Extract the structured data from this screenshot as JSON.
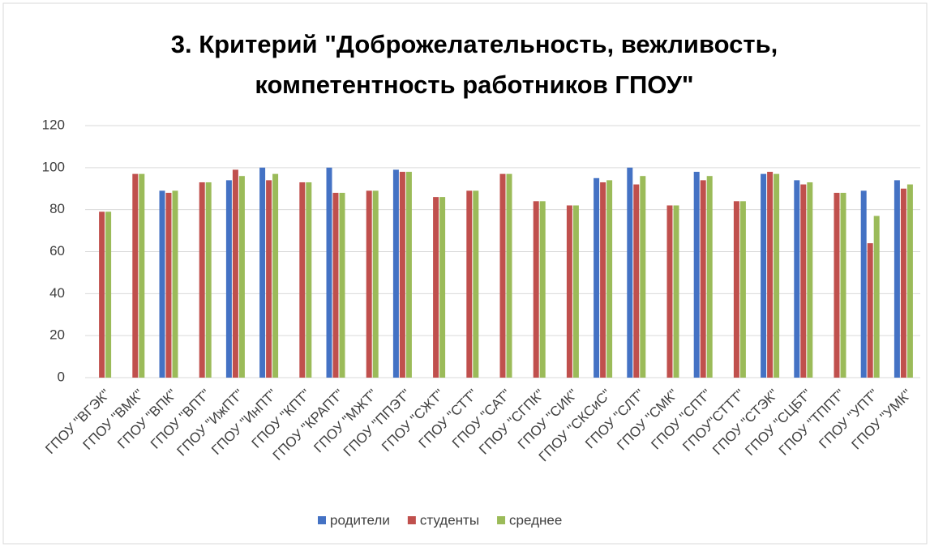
{
  "chart_data": {
    "type": "bar",
    "title": "3. Критерий \"Доброжелательность, вежливость, компетентность работников ГПОУ\"",
    "categories": [
      "ГПОУ \"ВГЭК\"",
      "ГПОУ \"ВМК\"",
      "ГПОУ \"ВПК\"",
      "ГПОУ \"ВПТ\"",
      "ГПОУ \"ИжПТ\"",
      "ГПОУ \"ИнПТ\"",
      "ГПОУ \"КПТ\"",
      "ГПОУ \"КРАПТ\"",
      "ГПОУ \"МЖТ\"",
      "ГПОУ \"ППЭТ\"",
      "ГПОУ \"СЖТ\"",
      "ГПОУ \"СТТ\"",
      "ГПОУ \"САТ\"",
      "ГПОУ \"СГПК\"",
      "ГПОУ \"СИК\"",
      "ГПОУ \"СКСиС\"",
      "ГПОУ \"СЛТ\"",
      "ГПОУ \"СМК\"",
      "ГПОУ \"СПТ\"",
      "ГПОУ\"СТТТ\"",
      "ГПОУ \"СТЭК\"",
      "ГПОУ \"СЦБТ\"",
      "ГПОУ \"ТППТ\"",
      "ГПОУ \"УПТ\"",
      "ГПОУ \"УМК\""
    ],
    "series": [
      {
        "name": "родители",
        "color": "#4472c4",
        "values": [
          null,
          null,
          89,
          null,
          94,
          100,
          null,
          100,
          null,
          99,
          null,
          null,
          null,
          null,
          null,
          95,
          100,
          null,
          98,
          null,
          97,
          94,
          null,
          89,
          94
        ]
      },
      {
        "name": "студенты",
        "color": "#c0504d",
        "values": [
          79,
          97,
          88,
          93,
          99,
          94,
          93,
          88,
          89,
          98,
          86,
          89,
          97,
          84,
          82,
          93,
          92,
          82,
          94,
          84,
          98,
          92,
          88,
          64,
          90
        ]
      },
      {
        "name": "среднее",
        "color": "#9bbb59",
        "values": [
          79,
          97,
          89,
          93,
          96,
          97,
          93,
          88,
          89,
          98,
          86,
          89,
          97,
          84,
          82,
          94,
          96,
          82,
          96,
          84,
          97,
          93,
          88,
          77,
          92
        ]
      }
    ],
    "ylim": [
      0,
      120
    ],
    "yticks": [
      0,
      20,
      40,
      60,
      80,
      100,
      120
    ],
    "grid": true,
    "legend": "bottom"
  }
}
